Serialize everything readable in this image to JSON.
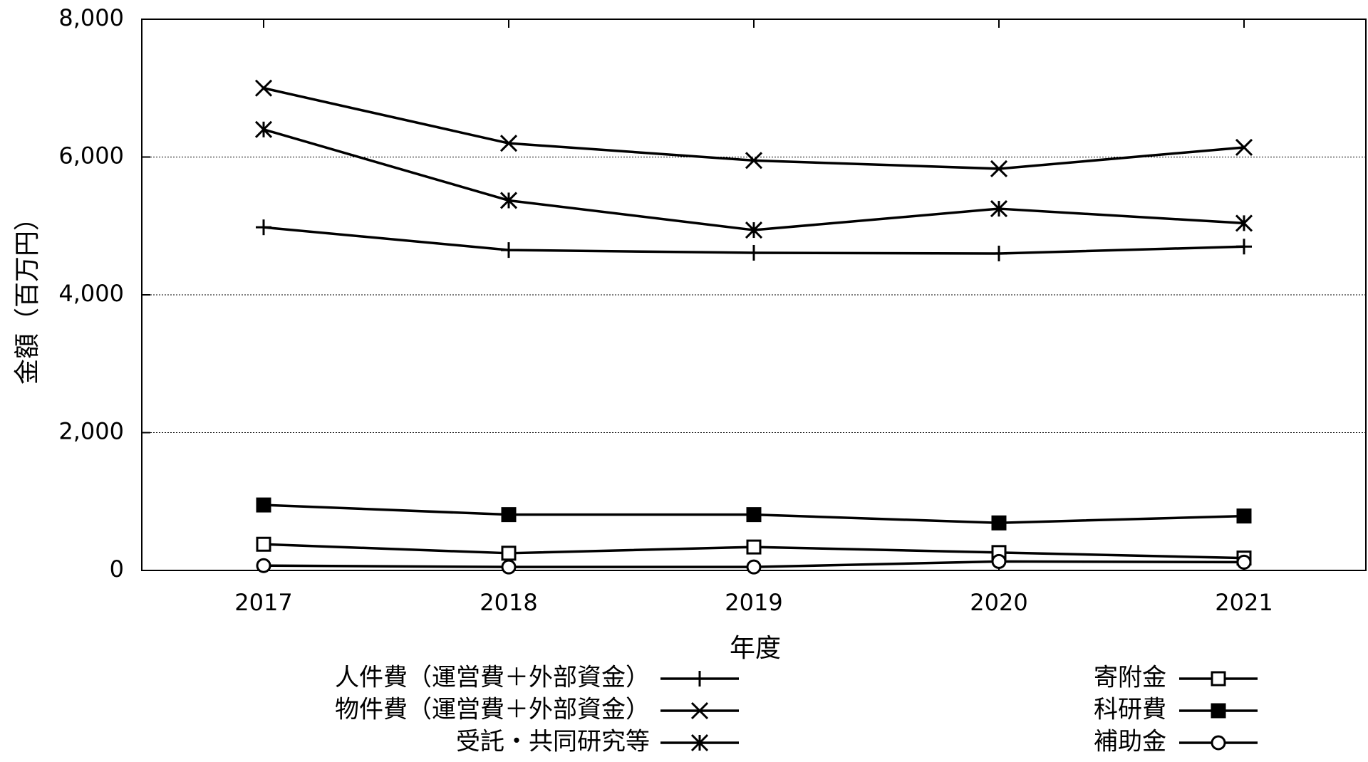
{
  "chart_data": {
    "type": "line",
    "title": "",
    "xlabel": "年度",
    "ylabel": "金額（百万円）",
    "x": [
      "2017",
      "2018",
      "2019",
      "2020",
      "2021"
    ],
    "ylim": [
      0,
      8000
    ],
    "yticks": [
      "0",
      "2,000",
      "4,000",
      "6,000",
      "8,000"
    ],
    "grid": "horizontal dotted",
    "legend_placement": "bottom",
    "series": [
      {
        "name": "人件費（運営費＋外部資金）",
        "marker": "plus",
        "values": [
          4980,
          4650,
          4610,
          4600,
          4700
        ]
      },
      {
        "name": "物件費（運営費＋外部資金）",
        "marker": "cross",
        "values": [
          7000,
          6200,
          5950,
          5830,
          6140
        ]
      },
      {
        "name": "受託・共同研究等",
        "marker": "star",
        "values": [
          6400,
          5370,
          4940,
          5250,
          5040
        ]
      },
      {
        "name": "寄附金",
        "marker": "open-square",
        "values": [
          380,
          250,
          340,
          260,
          180
        ]
      },
      {
        "name": "科研費",
        "marker": "filled-square",
        "values": [
          950,
          810,
          810,
          690,
          790
        ]
      },
      {
        "name": "補助金",
        "marker": "open-circle",
        "values": [
          70,
          50,
          50,
          130,
          120
        ]
      }
    ]
  }
}
